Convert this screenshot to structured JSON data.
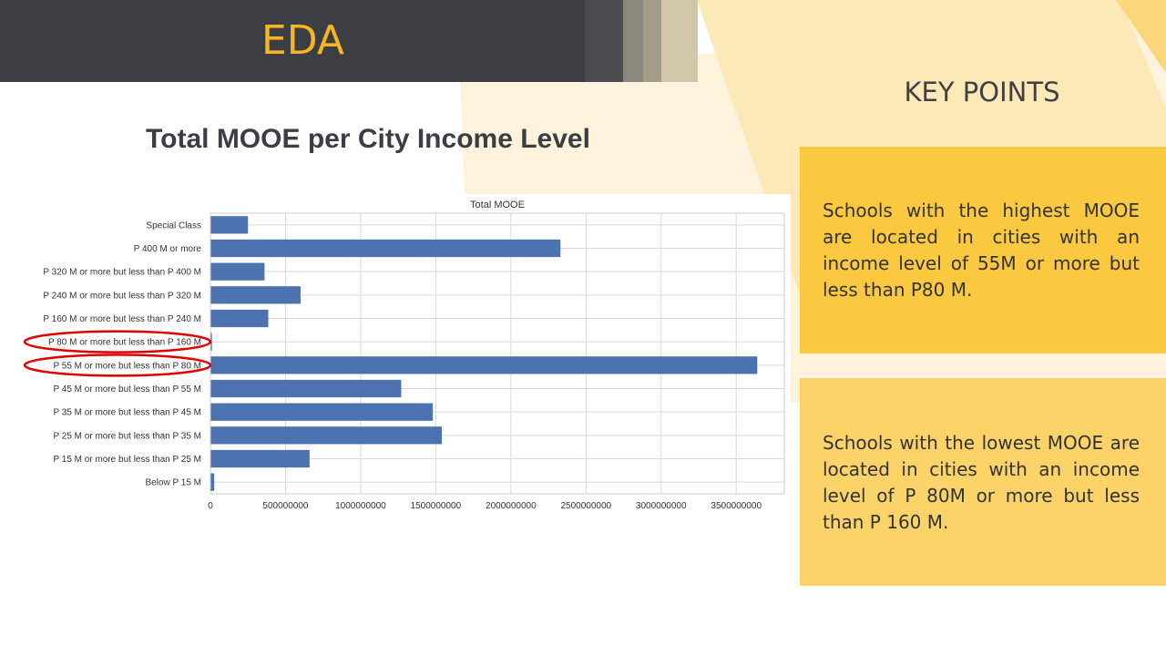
{
  "slide": {
    "title": "EDA"
  },
  "key_points": {
    "title": "KEY POINTS",
    "items": [
      "Schools with the highest MOOE are located in cities with an income level of 55M or more but less than P80 M.",
      "Schools with the lowest MOOE are located in cities with an income level of P 80M or more but less than P 160 M."
    ]
  },
  "colors": {
    "header": "#3b3e43",
    "title_accent": "#f7b51f",
    "bar": "#4c72b0",
    "highlight_ellipse": "#e00000",
    "key_box": "#fbc93f"
  },
  "chart_heading": "Total MOOE per City Income Level",
  "chart_data": {
    "type": "bar",
    "orientation": "horizontal",
    "title": "Total MOOE",
    "categories": [
      "Special Class",
      "P 400 M or more",
      "P 320 M or more but less than P 400 M",
      "P 240 M or more but less than P 320 M",
      "P 160 M or more but less than P 240 M",
      "P 80 M or more but less than P 160 M",
      "P 55 M or more but less than P 80 M",
      "P 45 M or more but less than P 55 M",
      "P 35 M or more but less than P 45 M",
      "P 25 M or more but less than P 35 M",
      "P 15 M or more but less than P 25 M",
      "Below P 15 M"
    ],
    "values": [
      250000000,
      2330000000,
      360000000,
      600000000,
      385000000,
      10000000,
      3640000000,
      1270000000,
      1480000000,
      1540000000,
      660000000,
      25000000
    ],
    "xlim": [
      0,
      3820000000
    ],
    "xticks": [
      0,
      500000000,
      1000000000,
      1500000000,
      2000000000,
      2500000000,
      3000000000,
      3500000000
    ],
    "xtick_labels": [
      "0",
      "500000000",
      "1000000000",
      "1500000000",
      "2000000000",
      "2500000000",
      "3000000000",
      "3500000000"
    ],
    "grid": true,
    "highlighted_categories": [
      "P 80 M or more but less than P 160 M",
      "P 55 M or more but less than P 80 M"
    ]
  }
}
